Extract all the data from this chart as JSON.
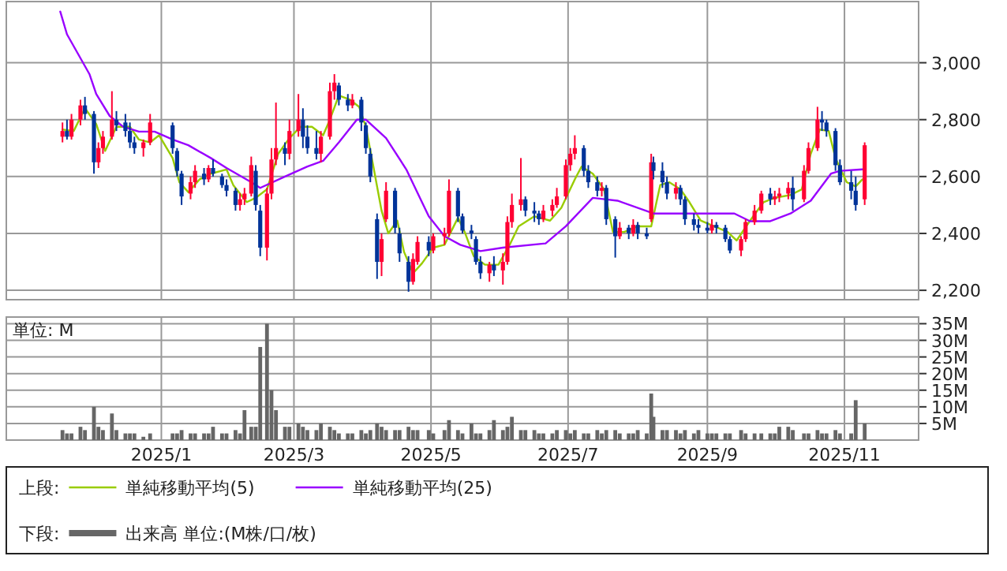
{
  "chart_data": [
    {
      "type": "candlestick",
      "x": [
        "2024-11-18",
        "2024-11-20",
        "2024-11-22",
        "2024-11-26",
        "2024-11-28",
        "2024-12-02",
        "2024-12-04",
        "2024-12-06",
        "2024-12-10",
        "2024-12-12",
        "2024-12-16",
        "2024-12-18",
        "2024-12-20",
        "2024-12-24",
        "2024-12-27",
        "2025-01-06",
        "2025-01-08",
        "2025-01-10",
        "2025-01-14",
        "2025-01-16",
        "2025-01-20",
        "2025-01-22",
        "2025-01-24",
        "2025-01-28",
        "2025-01-30",
        "2025-02-03",
        "2025-02-05",
        "2025-02-07",
        "2025-02-10",
        "2025-02-12",
        "2025-02-14",
        "2025-02-17",
        "2025-02-19",
        "2025-02-21",
        "2025-02-25",
        "2025-02-27",
        "2025-03-03",
        "2025-03-05",
        "2025-03-07",
        "2025-03-11",
        "2025-03-13",
        "2025-03-17",
        "2025-03-19",
        "2025-03-21",
        "2025-03-25",
        "2025-03-27",
        "2025-03-31",
        "2025-04-02",
        "2025-04-04",
        "2025-04-07",
        "2025-04-09",
        "2025-04-11",
        "2025-04-15",
        "2025-04-17",
        "2025-04-21",
        "2025-04-23",
        "2025-04-25",
        "2025-04-30",
        "2025-05-02",
        "2025-05-07",
        "2025-05-09",
        "2025-05-13",
        "2025-05-15",
        "2025-05-19",
        "2025-05-21",
        "2025-05-23",
        "2025-05-27",
        "2025-05-29",
        "2025-06-02",
        "2025-06-04",
        "2025-06-06",
        "2025-06-10",
        "2025-06-12",
        "2025-06-16",
        "2025-06-18",
        "2025-06-20",
        "2025-06-24",
        "2025-06-26",
        "2025-06-30",
        "2025-07-02",
        "2025-07-04",
        "2025-07-08",
        "2025-07-10",
        "2025-07-14",
        "2025-07-16",
        "2025-07-18",
        "2025-07-22",
        "2025-07-24",
        "2025-07-28",
        "2025-07-30",
        "2025-08-01",
        "2025-08-05",
        "2025-08-07",
        "2025-08-08",
        "2025-08-12",
        "2025-08-14",
        "2025-08-18",
        "2025-08-20",
        "2025-08-22",
        "2025-08-26",
        "2025-08-28",
        "2025-09-01",
        "2025-09-03",
        "2025-09-05",
        "2025-09-09",
        "2025-09-11",
        "2025-09-16",
        "2025-09-18",
        "2025-09-22",
        "2025-09-25",
        "2025-09-29",
        "2025-10-01",
        "2025-10-03",
        "2025-10-07",
        "2025-10-09",
        "2025-10-14",
        "2025-10-16",
        "2025-10-20",
        "2025-10-22",
        "2025-10-24",
        "2025-10-28",
        "2025-10-30",
        "2025-11-04",
        "2025-11-06",
        "2025-11-10"
      ],
      "ohlc": [
        [
          2740,
          2790,
          2720,
          2760
        ],
        [
          2760,
          2800,
          2730,
          2740
        ],
        [
          2740,
          2820,
          2730,
          2800
        ],
        [
          2800,
          2870,
          2780,
          2850
        ],
        [
          2850,
          2880,
          2800,
          2820
        ],
        [
          2820,
          2830,
          2610,
          2650
        ],
        [
          2650,
          2720,
          2630,
          2700
        ],
        [
          2700,
          2760,
          2680,
          2740
        ],
        [
          2740,
          2900,
          2730,
          2800
        ],
        [
          2800,
          2830,
          2760,
          2780
        ],
        [
          2790,
          2820,
          2740,
          2760
        ],
        [
          2760,
          2790,
          2700,
          2720
        ],
        [
          2720,
          2740,
          2680,
          2700
        ],
        [
          2700,
          2730,
          2670,
          2720
        ],
        [
          2720,
          2820,
          2710,
          2790
        ],
        [
          2780,
          2790,
          2680,
          2700
        ],
        [
          2690,
          2700,
          2600,
          2620
        ],
        [
          2610,
          2620,
          2500,
          2530
        ],
        [
          2540,
          2600,
          2520,
          2580
        ],
        [
          2580,
          2640,
          2560,
          2620
        ],
        [
          2610,
          2630,
          2570,
          2590
        ],
        [
          2590,
          2640,
          2580,
          2630
        ],
        [
          2630,
          2660,
          2600,
          2610
        ],
        [
          2600,
          2610,
          2560,
          2570
        ],
        [
          2570,
          2590,
          2530,
          2550
        ],
        [
          2550,
          2560,
          2480,
          2500
        ],
        [
          2500,
          2540,
          2480,
          2520
        ],
        [
          2520,
          2560,
          2500,
          2540
        ],
        [
          2540,
          2670,
          2530,
          2640
        ],
        [
          2620,
          2640,
          2480,
          2500
        ],
        [
          2480,
          2500,
          2320,
          2350
        ],
        [
          2350,
          2560,
          2305,
          2540
        ],
        [
          2540,
          2700,
          2520,
          2660
        ],
        [
          2660,
          2860,
          2640,
          2700
        ],
        [
          2700,
          2720,
          2640,
          2680
        ],
        [
          2680,
          2800,
          2660,
          2760
        ],
        [
          2760,
          2890,
          2740,
          2800
        ],
        [
          2800,
          2840,
          2700,
          2740
        ],
        [
          2740,
          2780,
          2680,
          2700
        ],
        [
          2700,
          2760,
          2660,
          2680
        ],
        [
          2680,
          2760,
          2650,
          2740
        ],
        [
          2740,
          2930,
          2730,
          2900
        ],
        [
          2900,
          2960,
          2870,
          2930
        ],
        [
          2920,
          2930,
          2850,
          2870
        ],
        [
          2870,
          2890,
          2830,
          2850
        ],
        [
          2850,
          2890,
          2840,
          2870
        ],
        [
          2870,
          2880,
          2760,
          2790
        ],
        [
          2780,
          2790,
          2680,
          2700
        ],
        [
          2680,
          2700,
          2580,
          2600
        ],
        [
          2450,
          2470,
          2240,
          2300
        ],
        [
          2300,
          2400,
          2250,
          2380
        ],
        [
          2450,
          2580,
          2440,
          2550
        ],
        [
          2550,
          2560,
          2400,
          2420
        ],
        [
          2400,
          2420,
          2300,
          2330
        ],
        [
          2300,
          2320,
          2195,
          2230
        ],
        [
          2230,
          2330,
          2220,
          2310
        ],
        [
          2300,
          2390,
          2290,
          2370
        ],
        [
          2370,
          2390,
          2320,
          2340
        ],
        [
          2340,
          2400,
          2330,
          2390
        ],
        [
          2390,
          2420,
          2360,
          2400
        ],
        [
          2400,
          2590,
          2390,
          2550
        ],
        [
          2550,
          2560,
          2440,
          2460
        ],
        [
          2460,
          2470,
          2400,
          2410
        ],
        [
          2410,
          2430,
          2380,
          2400
        ],
        [
          2380,
          2390,
          2290,
          2300
        ],
        [
          2300,
          2320,
          2240,
          2260
        ],
        [
          2260,
          2300,
          2230,
          2290
        ],
        [
          2290,
          2320,
          2250,
          2270
        ],
        [
          2270,
          2330,
          2220,
          2300
        ],
        [
          2300,
          2460,
          2290,
          2440
        ],
        [
          2440,
          2540,
          2420,
          2500
        ],
        [
          2500,
          2665,
          2480,
          2520
        ],
        [
          2520,
          2530,
          2460,
          2480
        ],
        [
          2480,
          2510,
          2440,
          2470
        ],
        [
          2470,
          2480,
          2430,
          2450
        ],
        [
          2450,
          2500,
          2440,
          2480
        ],
        [
          2480,
          2520,
          2460,
          2500
        ],
        [
          2500,
          2560,
          2490,
          2530
        ],
        [
          2530,
          2660,
          2520,
          2640
        ],
        [
          2640,
          2700,
          2620,
          2680
        ],
        [
          2680,
          2745,
          2660,
          2700
        ],
        [
          2700,
          2710,
          2600,
          2620
        ],
        [
          2620,
          2640,
          2560,
          2580
        ],
        [
          2580,
          2600,
          2530,
          2550
        ],
        [
          2550,
          2580,
          2530,
          2560
        ],
        [
          2560,
          2570,
          2430,
          2450
        ],
        [
          2450,
          2460,
          2315,
          2390
        ],
        [
          2390,
          2440,
          2380,
          2420
        ],
        [
          2420,
          2430,
          2380,
          2400
        ],
        [
          2400,
          2450,
          2390,
          2430
        ],
        [
          2430,
          2440,
          2380,
          2400
        ],
        [
          2400,
          2420,
          2380,
          2390
        ],
        [
          2450,
          2680,
          2440,
          2650
        ],
        [
          2650,
          2670,
          2590,
          2620
        ],
        [
          2620,
          2650,
          2560,
          2580
        ],
        [
          2580,
          2600,
          2520,
          2540
        ],
        [
          2540,
          2580,
          2520,
          2560
        ],
        [
          2560,
          2570,
          2500,
          2520
        ],
        [
          2520,
          2530,
          2430,
          2450
        ],
        [
          2450,
          2470,
          2410,
          2430
        ],
        [
          2430,
          2450,
          2400,
          2420
        ],
        [
          2420,
          2440,
          2400,
          2410
        ],
        [
          2410,
          2450,
          2400,
          2430
        ],
        [
          2430,
          2440,
          2400,
          2420
        ],
        [
          2420,
          2430,
          2370,
          2380
        ],
        [
          2380,
          2390,
          2330,
          2340
        ],
        [
          2340,
          2390,
          2320,
          2380
        ],
        [
          2380,
          2450,
          2370,
          2440
        ],
        [
          2440,
          2500,
          2430,
          2480
        ],
        [
          2480,
          2550,
          2470,
          2540
        ],
        [
          2540,
          2560,
          2500,
          2520
        ],
        [
          2520,
          2550,
          2500,
          2530
        ],
        [
          2530,
          2560,
          2510,
          2540
        ],
        [
          2540,
          2580,
          2520,
          2560
        ],
        [
          2560,
          2600,
          2480,
          2520
        ],
        [
          2520,
          2640,
          2510,
          2620
        ],
        [
          2620,
          2720,
          2610,
          2700
        ],
        [
          2700,
          2845,
          2690,
          2800
        ],
        [
          2800,
          2830,
          2760,
          2790
        ],
        [
          2790,
          2800,
          2740,
          2760
        ],
        [
          2760,
          2770,
          2620,
          2640
        ],
        [
          2640,
          2660,
          2570,
          2580
        ],
        [
          2580,
          2620,
          2520,
          2550
        ],
        [
          2550,
          2600,
          2480,
          2500
        ],
        [
          2520,
          2720,
          2500,
          2710
        ]
      ],
      "series": [
        {
          "type": "line",
          "name": "単純移動平均(5)",
          "color": "#99cc00",
          "x": [
            "2024-11-18",
            "2024-11-23",
            "2024-11-28",
            "2024-12-03",
            "2024-12-07",
            "2024-12-12",
            "2024-12-18",
            "2024-12-22",
            "2024-12-27",
            "2024-12-31",
            "2025-01-06",
            "2025-01-09",
            "2025-01-13",
            "2025-01-18",
            "2025-01-23",
            "2025-01-30",
            "2025-02-02",
            "2025-02-08",
            "2025-02-12",
            "2025-02-17",
            "2025-02-22",
            "2025-02-27",
            "2025-03-04",
            "2025-03-09",
            "2025-03-14",
            "2025-03-17",
            "2025-03-21",
            "2025-03-26",
            "2025-03-30",
            "2025-04-02",
            "2025-04-05",
            "2025-04-09",
            "2025-04-12",
            "2025-04-16",
            "2025-04-19",
            "2025-04-23",
            "2025-04-27",
            "2025-05-02",
            "2025-05-07",
            "2025-05-13",
            "2025-05-16",
            "2025-05-20",
            "2025-05-25",
            "2025-05-31",
            "2025-06-05",
            "2025-06-09",
            "2025-06-16",
            "2025-06-23",
            "2025-06-28",
            "2025-07-04",
            "2025-07-07",
            "2025-07-12",
            "2025-07-17",
            "2025-07-21",
            "2025-07-26",
            "2025-08-01",
            "2025-08-07",
            "2025-08-11",
            "2025-08-15",
            "2025-08-20",
            "2025-08-24",
            "2025-08-29",
            "2025-09-04",
            "2025-09-10",
            "2025-09-14",
            "2025-09-20",
            "2025-09-26",
            "2025-10-01",
            "2025-10-08",
            "2025-10-13",
            "2025-10-17",
            "2025-10-21",
            "2025-10-25",
            "2025-10-28",
            "2025-11-02",
            "2025-11-06",
            "2025-11-09"
          ],
          "values": [
            2765,
            2760,
            2840,
            2785,
            2690,
            2775,
            2775,
            2730,
            2720,
            2745,
            2665,
            2580,
            2545,
            2590,
            2610,
            2625,
            2570,
            2510,
            2525,
            2555,
            2680,
            2735,
            2775,
            2775,
            2745,
            2800,
            2885,
            2870,
            2845,
            2775,
            2650,
            2480,
            2400,
            2445,
            2335,
            2260,
            2295,
            2350,
            2360,
            2455,
            2405,
            2320,
            2290,
            2290,
            2360,
            2425,
            2460,
            2445,
            2490,
            2590,
            2635,
            2610,
            2555,
            2405,
            2405,
            2425,
            2425,
            2570,
            2580,
            2555,
            2510,
            2445,
            2425,
            2405,
            2375,
            2445,
            2510,
            2525,
            2535,
            2555,
            2680,
            2765,
            2760,
            2665,
            2580,
            2565,
            2590
          ]
        },
        {
          "type": "line",
          "name": "単純移動平均(25)",
          "color": "#9900ff",
          "x": [
            "2024-11-17",
            "2024-11-20",
            "2024-11-25",
            "2024-11-30",
            "2024-12-03",
            "2024-12-09",
            "2024-12-15",
            "2024-12-22",
            "2024-12-29",
            "2025-01-06",
            "2025-01-13",
            "2025-01-23",
            "2025-01-30",
            "2025-02-10",
            "2025-02-14",
            "2025-02-25",
            "2025-03-07",
            "2025-03-14",
            "2025-03-21",
            "2025-03-29",
            "2025-04-02",
            "2025-04-11",
            "2025-04-20",
            "2025-04-30",
            "2025-05-07",
            "2025-05-14",
            "2025-05-23",
            "2025-06-02",
            "2025-06-21",
            "2025-06-30",
            "2025-07-12",
            "2025-07-23",
            "2025-08-08",
            "2025-08-24",
            "2025-09-13",
            "2025-09-20",
            "2025-09-29",
            "2025-10-08",
            "2025-10-17",
            "2025-10-26",
            "2025-10-30",
            "2025-11-09"
          ],
          "values": [
            3180,
            3100,
            3030,
            2960,
            2890,
            2813,
            2775,
            2758,
            2758,
            2730,
            2710,
            2665,
            2630,
            2580,
            2560,
            2600,
            2635,
            2655,
            2720,
            2800,
            2800,
            2735,
            2625,
            2460,
            2390,
            2360,
            2338,
            2350,
            2365,
            2425,
            2525,
            2515,
            2470,
            2470,
            2470,
            2443,
            2443,
            2470,
            2515,
            2610,
            2620,
            2625
          ]
        }
      ],
      "xlim": [
        "2024-10-24",
        "2025-12-04"
      ],
      "xticks": [
        {
          "value": "2025-01-01",
          "label": null
        },
        {
          "value": "2025-03-01",
          "label": null
        },
        {
          "value": "2025-05-01",
          "label": null
        },
        {
          "value": "2025-07-01",
          "label": null
        },
        {
          "value": "2025-09-01",
          "label": null
        },
        {
          "value": "2025-11-01",
          "label": null
        }
      ],
      "ylim": [
        2167,
        3215
      ],
      "yticks": [
        {
          "value": 2200,
          "label": "2,200"
        },
        {
          "value": 2400,
          "label": "2,400"
        },
        {
          "value": 2600,
          "label": "2,600"
        },
        {
          "value": 2800,
          "label": "2,800"
        },
        {
          "value": 3000,
          "label": "3,000"
        }
      ],
      "tick_labels": "y",
      "grid": true,
      "legend": "bottom",
      "legend_title": "上段:"
    },
    {
      "type": "bar",
      "x": [
        "2024-11-18",
        "2024-11-20",
        "2024-11-22",
        "2024-11-26",
        "2024-11-28",
        "2024-12-02",
        "2024-12-04",
        "2024-12-06",
        "2024-12-10",
        "2024-12-12",
        "2024-12-16",
        "2024-12-18",
        "2024-12-20",
        "2024-12-24",
        "2024-12-27",
        "2025-01-06",
        "2025-01-08",
        "2025-01-10",
        "2025-01-14",
        "2025-01-16",
        "2025-01-20",
        "2025-01-22",
        "2025-01-24",
        "2025-01-28",
        "2025-01-30",
        "2025-02-03",
        "2025-02-05",
        "2025-02-07",
        "2025-02-10",
        "2025-02-12",
        "2025-02-14",
        "2025-02-17",
        "2025-02-19",
        "2025-02-21",
        "2025-02-25",
        "2025-02-27",
        "2025-03-03",
        "2025-03-05",
        "2025-03-07",
        "2025-03-11",
        "2025-03-13",
        "2025-03-17",
        "2025-03-19",
        "2025-03-21",
        "2025-03-25",
        "2025-03-27",
        "2025-03-31",
        "2025-04-02",
        "2025-04-04",
        "2025-04-07",
        "2025-04-09",
        "2025-04-11",
        "2025-04-15",
        "2025-04-17",
        "2025-04-21",
        "2025-04-23",
        "2025-04-25",
        "2025-04-30",
        "2025-05-02",
        "2025-05-07",
        "2025-05-09",
        "2025-05-13",
        "2025-05-15",
        "2025-05-19",
        "2025-05-21",
        "2025-05-23",
        "2025-05-27",
        "2025-05-29",
        "2025-06-02",
        "2025-06-04",
        "2025-06-06",
        "2025-06-10",
        "2025-06-12",
        "2025-06-16",
        "2025-06-18",
        "2025-06-20",
        "2025-06-24",
        "2025-06-26",
        "2025-06-30",
        "2025-07-02",
        "2025-07-04",
        "2025-07-08",
        "2025-07-10",
        "2025-07-14",
        "2025-07-16",
        "2025-07-18",
        "2025-07-22",
        "2025-07-24",
        "2025-07-28",
        "2025-07-30",
        "2025-08-01",
        "2025-08-05",
        "2025-08-07",
        "2025-08-08",
        "2025-08-12",
        "2025-08-14",
        "2025-08-18",
        "2025-08-20",
        "2025-08-22",
        "2025-08-26",
        "2025-08-28",
        "2025-09-01",
        "2025-09-03",
        "2025-09-05",
        "2025-09-09",
        "2025-09-11",
        "2025-09-16",
        "2025-09-18",
        "2025-09-22",
        "2025-09-25",
        "2025-09-29",
        "2025-10-01",
        "2025-10-03",
        "2025-10-07",
        "2025-10-09",
        "2025-10-14",
        "2025-10-16",
        "2025-10-20",
        "2025-10-22",
        "2025-10-24",
        "2025-10-28",
        "2025-10-30",
        "2025-11-04",
        "2025-11-06",
        "2025-11-10"
      ],
      "series": [
        {
          "name": "出来高 単位:(M株/口/枚)",
          "color": "#666666",
          "values": [
            3,
            2,
            2,
            4,
            3,
            10,
            4,
            3,
            8,
            3,
            2,
            2,
            2,
            1,
            2,
            2,
            2,
            3,
            2,
            2,
            2,
            2,
            4,
            2,
            2,
            3,
            2,
            9,
            4,
            4,
            28,
            35,
            15,
            9,
            4,
            4,
            5,
            4,
            3,
            3,
            5,
            4,
            3,
            2,
            2,
            2,
            3,
            2,
            3,
            5,
            4,
            3,
            3,
            3,
            4,
            3,
            3,
            3,
            2,
            3,
            6,
            3,
            2,
            5,
            2,
            2,
            3,
            6,
            3,
            4,
            7,
            3,
            3,
            3,
            2,
            2,
            2,
            3,
            3,
            2,
            3,
            2,
            2,
            3,
            2,
            3,
            3,
            2,
            2,
            2,
            3,
            2,
            14,
            7,
            3,
            3,
            3,
            2,
            3,
            2,
            3,
            2,
            2,
            2,
            2,
            2,
            3,
            2,
            2,
            2,
            2,
            2,
            4,
            4,
            3,
            2,
            2,
            3,
            2,
            2,
            3,
            2,
            2,
            12,
            5
          ]
        }
      ],
      "xlim": [
        "2024-10-24",
        "2025-12-04"
      ],
      "xticks": [
        {
          "value": "2025-01-01",
          "label": "2025/1"
        },
        {
          "value": "2025-03-01",
          "label": "2025/3"
        },
        {
          "value": "2025-05-01",
          "label": "2025/5"
        },
        {
          "value": "2025-07-01",
          "label": "2025/7"
        },
        {
          "value": "2025-09-01",
          "label": "2025/9"
        },
        {
          "value": "2025-11-01",
          "label": "2025/11"
        }
      ],
      "ylim": [
        0,
        37
      ],
      "yticks": [
        {
          "value": 5,
          "label": "5M"
        },
        {
          "value": 10,
          "label": "10M"
        },
        {
          "value": 15,
          "label": "15M"
        },
        {
          "value": 20,
          "label": "20M"
        },
        {
          "value": 25,
          "label": "25M"
        },
        {
          "value": 30,
          "label": "30M"
        },
        {
          "value": 35,
          "label": "35M"
        }
      ],
      "annotations": [
        "単位: M"
      ],
      "grid": true,
      "legend": "bottom",
      "legend_title": "下段:"
    }
  ]
}
